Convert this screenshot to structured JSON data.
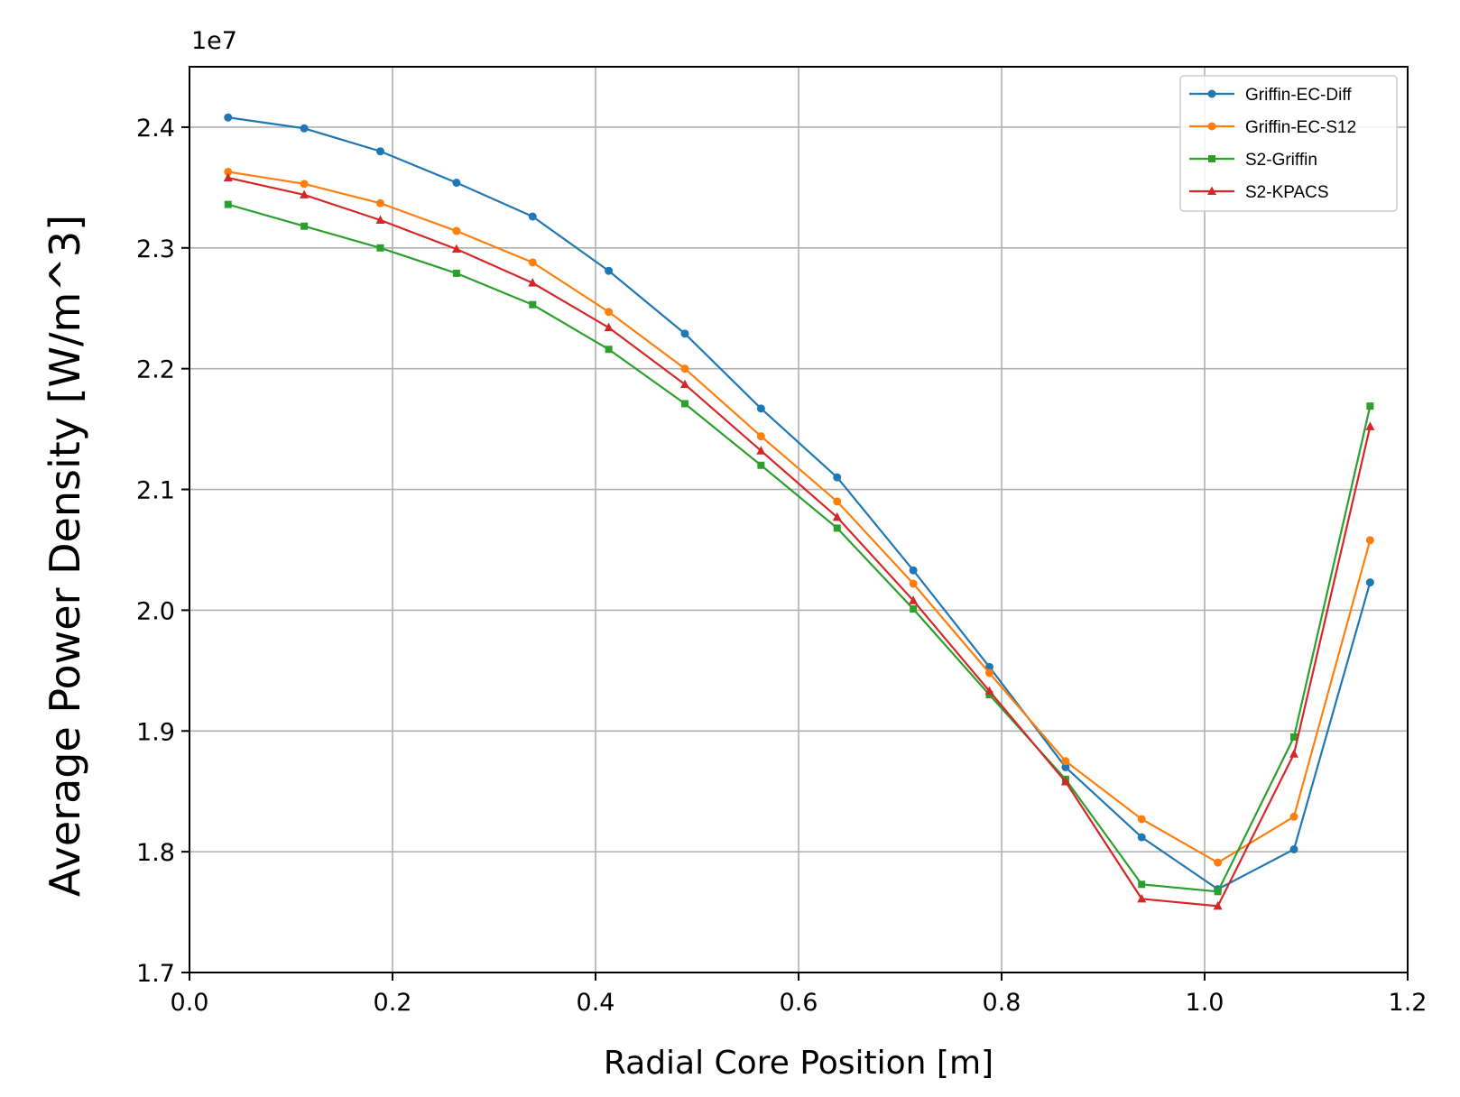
{
  "chart_data": {
    "type": "line",
    "xlabel": "Radial Core Position [m]",
    "ylabel": "Average Power Density [W/m^3]",
    "y_offset_label": "1e7",
    "xlim": [
      0.0,
      1.2
    ],
    "ylim": [
      1.7,
      2.45
    ],
    "xticks": [
      "0.0",
      "0.2",
      "0.4",
      "0.6",
      "0.8",
      "1.0",
      "1.2"
    ],
    "yticks": [
      "1.7",
      "1.8",
      "1.9",
      "2.0",
      "2.1",
      "2.2",
      "2.3",
      "2.4"
    ],
    "grid": true,
    "legend_position": "top-right",
    "x": [
      0.038,
      0.113,
      0.188,
      0.263,
      0.338,
      0.413,
      0.488,
      0.563,
      0.638,
      0.713,
      0.788,
      0.863,
      0.938,
      1.013,
      1.088,
      1.163
    ],
    "series": [
      {
        "name": "Griffin-EC-Diff",
        "color": "#1f77b4",
        "marker": "circle",
        "values": [
          2.408,
          2.399,
          2.38,
          2.354,
          2.326,
          2.281,
          2.229,
          2.167,
          2.11,
          2.033,
          1.953,
          1.87,
          1.812,
          1.769,
          1.802,
          2.023
        ]
      },
      {
        "name": "Griffin-EC-S12",
        "color": "#ff7f0e",
        "marker": "circle",
        "values": [
          2.363,
          2.353,
          2.337,
          2.314,
          2.288,
          2.247,
          2.2,
          2.144,
          2.09,
          2.022,
          1.948,
          1.875,
          1.827,
          1.791,
          1.829,
          2.058
        ]
      },
      {
        "name": "S2-Griffin",
        "color": "#2ca02c",
        "marker": "square",
        "values": [
          2.336,
          2.318,
          2.3,
          2.279,
          2.253,
          2.216,
          2.171,
          2.12,
          2.068,
          2.001,
          1.93,
          1.86,
          1.773,
          1.767,
          1.895,
          2.169
        ]
      },
      {
        "name": "S2-KPACS",
        "color": "#d62728",
        "marker": "triangle",
        "values": [
          2.358,
          2.344,
          2.323,
          2.299,
          2.271,
          2.234,
          2.187,
          2.132,
          2.077,
          2.008,
          1.933,
          1.858,
          1.761,
          1.755,
          1.881,
          2.152
        ]
      }
    ]
  }
}
